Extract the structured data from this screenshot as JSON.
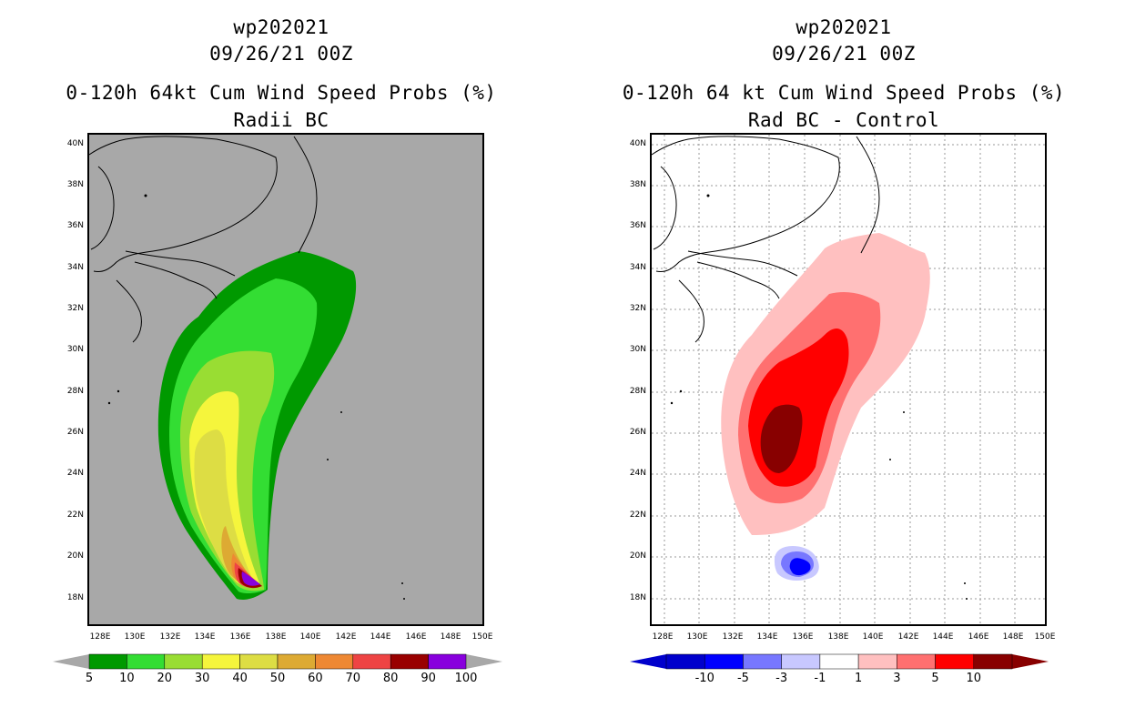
{
  "left": {
    "title1": "wp202021",
    "title2": "09/26/21 00Z",
    "title3": "0-120h 64kt Cum Wind Speed Probs (%)",
    "title4": "Radii BC",
    "colorbar": {
      "colors": [
        "#009900",
        "#33dd33",
        "#99dd33",
        "#f5f53c",
        "#dddd44",
        "#ddaa33",
        "#ee8833",
        "#ee4444",
        "#990000",
        "#8800dd"
      ],
      "labels": [
        "5",
        "10",
        "20",
        "30",
        "40",
        "50",
        "60",
        "70",
        "80",
        "90",
        "100"
      ]
    }
  },
  "right": {
    "title1": "wp202021",
    "title2": "09/26/21 00Z",
    "title3": "0-120h 64 kt Cum Wind Speed Probs (%)",
    "title4": "Rad BC - Control",
    "colorbar": {
      "colors": [
        "#0000cc",
        "#0000ff",
        "#7777ff",
        "#c8c8ff",
        "#ffffff",
        "#ffc0c0",
        "#ff7070",
        "#ff0000",
        "#880000"
      ],
      "labels": [
        "-10",
        "-5",
        "-3",
        "-1",
        "1",
        "3",
        "5",
        "10"
      ]
    }
  },
  "axes": {
    "lat_labels": [
      "40N",
      "38N",
      "36N",
      "34N",
      "32N",
      "30N",
      "28N",
      "26N",
      "24N",
      "22N",
      "20N",
      "18N"
    ],
    "lon_labels": [
      "128E",
      "130E",
      "132E",
      "134E",
      "136E",
      "138E",
      "140E",
      "142E",
      "144E",
      "146E",
      "148E",
      "150E"
    ]
  }
}
